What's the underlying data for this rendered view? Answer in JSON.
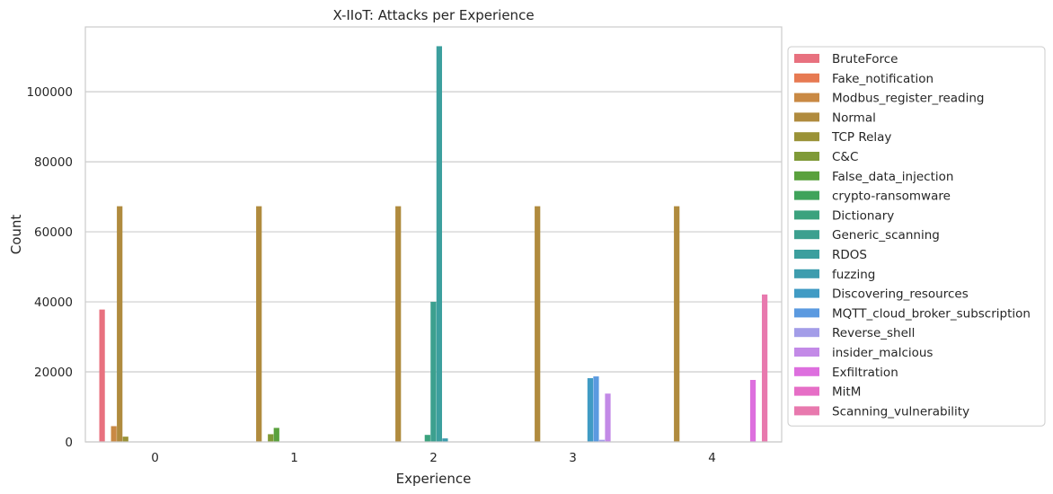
{
  "chart_data": {
    "type": "bar",
    "title": "X-IIoT: Attacks per Experience",
    "xlabel": "Experience",
    "ylabel": "Count",
    "ylim": [
      0,
      118500
    ],
    "yticks": [
      0,
      20000,
      40000,
      60000,
      80000,
      100000
    ],
    "grid": true,
    "legend_position": "right",
    "categories": [
      "0",
      "1",
      "2",
      "3",
      "4"
    ],
    "series": [
      {
        "name": "BruteForce",
        "color": "#e8717f",
        "values": [
          37800,
          0,
          0,
          0,
          0
        ]
      },
      {
        "name": "Fake_notification",
        "color": "#e77a52",
        "values": [
          0,
          0,
          0,
          0,
          0
        ]
      },
      {
        "name": "Modbus_register_reading",
        "color": "#c98944",
        "values": [
          4500,
          0,
          0,
          0,
          0
        ]
      },
      {
        "name": "Normal",
        "color": "#b08b3e",
        "values": [
          67300,
          67300,
          67300,
          67300,
          67300
        ]
      },
      {
        "name": "TCP Relay",
        "color": "#9a9237",
        "values": [
          1500,
          0,
          0,
          0,
          0
        ]
      },
      {
        "name": "C&C",
        "color": "#7f9a37",
        "values": [
          0,
          2200,
          0,
          0,
          0
        ]
      },
      {
        "name": "False_data_injection",
        "color": "#5aa13d",
        "values": [
          0,
          4000,
          0,
          0,
          0
        ]
      },
      {
        "name": "crypto-ransomware",
        "color": "#3fa35b",
        "values": [
          0,
          0,
          0,
          0,
          0
        ]
      },
      {
        "name": "Dictionary",
        "color": "#3ba27e",
        "values": [
          0,
          0,
          2000,
          0,
          0
        ]
      },
      {
        "name": "Generic_scanning",
        "color": "#3ca08f",
        "values": [
          0,
          0,
          40000,
          0,
          0
        ]
      },
      {
        "name": "RDOS",
        "color": "#3c9f9e",
        "values": [
          0,
          0,
          113000,
          0,
          0
        ]
      },
      {
        "name": "fuzzing",
        "color": "#3e9dae",
        "values": [
          0,
          0,
          1000,
          0,
          0
        ]
      },
      {
        "name": "Discovering_resources",
        "color": "#409bc4",
        "values": [
          0,
          0,
          0,
          18200,
          0
        ]
      },
      {
        "name": "MQTT_cloud_broker_subscription",
        "color": "#5b9ae0",
        "values": [
          0,
          0,
          0,
          18700,
          0
        ]
      },
      {
        "name": "Reverse_shell",
        "color": "#a39de8",
        "values": [
          0,
          0,
          0,
          600,
          0
        ]
      },
      {
        "name": "insider_malcious",
        "color": "#c38ae7",
        "values": [
          0,
          0,
          0,
          13800,
          0
        ]
      },
      {
        "name": "Exfiltration",
        "color": "#dd6fde",
        "values": [
          0,
          0,
          0,
          0,
          17700
        ]
      },
      {
        "name": "MitM",
        "color": "#e66ec6",
        "values": [
          0,
          0,
          0,
          0,
          0
        ]
      },
      {
        "name": "Scanning_vulnerability",
        "color": "#e879ae",
        "values": [
          0,
          0,
          0,
          0,
          42100
        ]
      }
    ]
  }
}
